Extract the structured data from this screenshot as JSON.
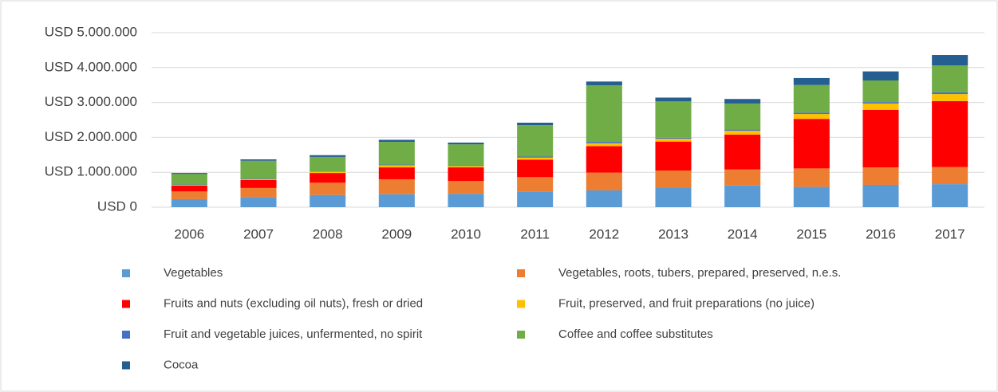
{
  "chart_data": {
    "type": "bar",
    "stacked": true,
    "categories": [
      "2006",
      "2007",
      "2008",
      "2009",
      "2010",
      "2011",
      "2012",
      "2013",
      "2014",
      "2015",
      "2016",
      "2017"
    ],
    "series": [
      {
        "name": "Vegetables",
        "color": "#5b9bd5",
        "values": [
          230000,
          290000,
          350000,
          370000,
          380000,
          450000,
          480000,
          560000,
          620000,
          580000,
          640000,
          660000
        ]
      },
      {
        "name": "Vegetables, roots, tubers, prepared, preserved, n.e.s.",
        "color": "#ed7d31",
        "values": [
          220000,
          260000,
          350000,
          430000,
          370000,
          410000,
          510000,
          490000,
          460000,
          530000,
          500000,
          490000
        ]
      },
      {
        "name": "Fruits and nuts (excluding oil nuts), fresh or dried",
        "color": "#ff0000",
        "values": [
          170000,
          230000,
          280000,
          340000,
          390000,
          500000,
          760000,
          830000,
          1000000,
          1420000,
          1650000,
          1890000
        ]
      },
      {
        "name": "Fruit, preserved, and fruit preparations (no juice)",
        "color": "#ffc000",
        "values": [
          20000,
          20000,
          30000,
          60000,
          40000,
          60000,
          80000,
          80000,
          110000,
          140000,
          180000,
          200000
        ]
      },
      {
        "name": "Fruit and vegetable juices, unfermented, no spirit",
        "color": "#4472c4",
        "values": [
          10000,
          10000,
          10000,
          20000,
          20000,
          30000,
          40000,
          30000,
          40000,
          40000,
          40000,
          50000
        ]
      },
      {
        "name": "Coffee and coffee substitutes",
        "color": "#70ad47",
        "values": [
          300000,
          520000,
          420000,
          650000,
          600000,
          900000,
          1620000,
          1040000,
          740000,
          790000,
          620000,
          770000
        ]
      },
      {
        "name": "Cocoa",
        "color": "#255e91",
        "values": [
          30000,
          40000,
          50000,
          60000,
          50000,
          70000,
          110000,
          110000,
          130000,
          200000,
          260000,
          300000
        ]
      }
    ],
    "ylim": [
      0,
      5000000
    ],
    "yticks": [
      {
        "value": 0,
        "label": "USD 0"
      },
      {
        "value": 1000000,
        "label": "USD 1.000.000"
      },
      {
        "value": 2000000,
        "label": "USD 2.000.000"
      },
      {
        "value": 3000000,
        "label": "USD 3.000.000"
      },
      {
        "value": 4000000,
        "label": "USD 4.000.000"
      },
      {
        "value": 5000000,
        "label": "USD 5.000.000"
      }
    ],
    "grid": true,
    "legend": "bottom"
  }
}
